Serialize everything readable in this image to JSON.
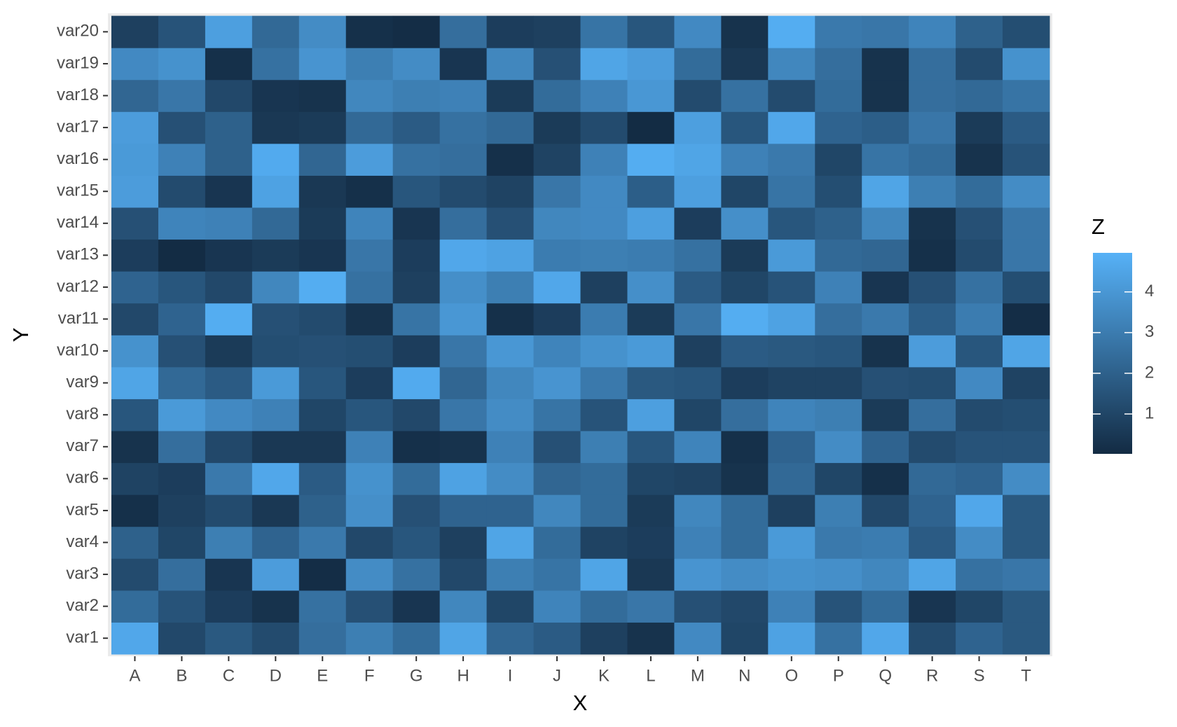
{
  "chart_data": {
    "type": "heatmap",
    "x_label": "X",
    "y_label": "Y",
    "legend_title": "Z",
    "x_categories": [
      "A",
      "B",
      "C",
      "D",
      "E",
      "F",
      "G",
      "H",
      "I",
      "J",
      "K",
      "L",
      "M",
      "N",
      "O",
      "P",
      "Q",
      "R",
      "S",
      "T"
    ],
    "y_categories": [
      "var1",
      "var2",
      "var3",
      "var4",
      "var5",
      "var6",
      "var7",
      "var8",
      "var9",
      "var10",
      "var11",
      "var12",
      "var13",
      "var14",
      "var15",
      "var16",
      "var17",
      "var18",
      "var19",
      "var20"
    ],
    "values": [
      [
        4.6,
        1.1,
        1.7,
        1.2,
        2.5,
        3.1,
        2.4,
        4.5,
        2.2,
        1.8,
        0.8,
        0.3,
        3.5,
        1.0,
        4.4,
        2.6,
        4.6,
        1.2,
        2.1,
        1.7
      ],
      [
        2.4,
        1.5,
        0.7,
        0.3,
        2.6,
        1.4,
        0.4,
        3.4,
        1.0,
        3.3,
        2.4,
        2.8,
        1.4,
        1.1,
        3.2,
        1.5,
        2.4,
        0.4,
        1.0,
        1.7
      ],
      [
        1.2,
        2.5,
        0.4,
        4.2,
        0.1,
        3.6,
        2.6,
        1.1,
        3.1,
        2.7,
        4.5,
        0.5,
        3.9,
        3.6,
        3.8,
        3.7,
        3.4,
        4.5,
        2.6,
        2.8
      ],
      [
        2.0,
        1.0,
        3.1,
        2.1,
        2.9,
        1.1,
        1.6,
        0.8,
        4.5,
        2.4,
        0.9,
        0.7,
        3.2,
        2.4,
        4.1,
        2.9,
        3.0,
        1.8,
        3.6,
        1.7
      ],
      [
        0.2,
        0.8,
        1.2,
        0.5,
        2.0,
        3.7,
        1.4,
        2.1,
        2.1,
        3.4,
        2.4,
        0.6,
        3.4,
        2.4,
        0.8,
        3.1,
        1.1,
        2.1,
        4.6,
        1.7
      ],
      [
        0.9,
        0.7,
        2.9,
        4.6,
        1.8,
        3.8,
        2.4,
        4.4,
        3.6,
        2.2,
        2.4,
        1.0,
        0.9,
        0.3,
        2.3,
        1.0,
        0.2,
        2.3,
        2.1,
        3.6
      ],
      [
        0.3,
        2.5,
        1.1,
        0.5,
        0.5,
        3.2,
        0.2,
        0.3,
        3.2,
        1.4,
        3.1,
        1.6,
        3.3,
        0.2,
        2.1,
        3.6,
        2.1,
        1.2,
        1.5,
        1.5
      ],
      [
        1.6,
        4.1,
        3.5,
        3.2,
        1.0,
        1.6,
        1.1,
        2.8,
        3.6,
        2.7,
        1.5,
        4.3,
        1.0,
        2.5,
        3.3,
        3.1,
        0.6,
        2.5,
        1.2,
        1.3
      ],
      [
        4.5,
        2.3,
        1.8,
        4.1,
        1.6,
        0.7,
        4.7,
        2.2,
        3.4,
        3.9,
        2.9,
        1.7,
        1.6,
        0.7,
        0.9,
        0.9,
        1.4,
        1.3,
        3.5,
        0.9
      ],
      [
        3.8,
        1.4,
        0.6,
        1.3,
        1.4,
        1.3,
        0.7,
        2.8,
        4.0,
        3.3,
        3.8,
        4.1,
        0.8,
        1.8,
        1.7,
        1.6,
        0.3,
        4.2,
        1.6,
        4.5
      ],
      [
        1.1,
        2.1,
        4.8,
        1.4,
        1.2,
        0.3,
        2.7,
        4.0,
        0.2,
        0.7,
        3.0,
        0.6,
        2.8,
        4.8,
        4.4,
        2.5,
        2.9,
        1.9,
        3.0,
        0.1
      ],
      [
        2.1,
        1.6,
        1.1,
        3.4,
        4.8,
        2.6,
        0.8,
        3.7,
        3.1,
        4.6,
        0.8,
        3.7,
        1.8,
        1.0,
        1.5,
        3.2,
        0.4,
        1.4,
        2.6,
        1.3
      ],
      [
        0.7,
        0.05,
        0.4,
        0.6,
        0.4,
        2.8,
        0.7,
        4.6,
        4.4,
        3.0,
        3.1,
        3.0,
        2.6,
        0.6,
        4.1,
        2.3,
        2.2,
        0.2,
        1.2,
        2.8
      ],
      [
        1.4,
        3.3,
        3.2,
        2.3,
        0.6,
        3.3,
        0.4,
        2.5,
        1.4,
        3.4,
        3.5,
        4.3,
        0.7,
        3.7,
        1.6,
        2.0,
        3.4,
        0.3,
        1.4,
        2.8
      ],
      [
        4.2,
        1.2,
        0.4,
        4.4,
        0.5,
        0.2,
        1.6,
        1.2,
        0.9,
        2.8,
        3.5,
        1.9,
        4.3,
        1.0,
        2.7,
        1.3,
        4.5,
        3.1,
        2.4,
        3.6
      ],
      [
        4.1,
        3.2,
        2.0,
        4.7,
        2.2,
        4.2,
        2.6,
        2.5,
        0.2,
        0.9,
        3.2,
        4.8,
        4.5,
        3.2,
        2.9,
        1.0,
        2.7,
        2.4,
        0.3,
        1.5
      ],
      [
        4.2,
        1.4,
        2.0,
        0.5,
        0.6,
        2.3,
        1.8,
        2.6,
        2.3,
        0.6,
        1.2,
        0.05,
        4.3,
        1.6,
        4.6,
        2.1,
        1.9,
        2.8,
        0.6,
        1.8
      ],
      [
        2.2,
        2.8,
        1.1,
        0.4,
        0.3,
        3.4,
        3.1,
        3.2,
        0.6,
        2.4,
        3.2,
        4.0,
        1.2,
        2.6,
        1.2,
        2.4,
        0.3,
        2.5,
        2.3,
        2.7
      ],
      [
        3.5,
        3.8,
        0.2,
        2.6,
        3.9,
        3.1,
        3.6,
        0.4,
        3.4,
        1.4,
        4.5,
        4.2,
        2.4,
        0.5,
        3.4,
        2.5,
        0.3,
        2.5,
        1.2,
        3.8
      ],
      [
        0.8,
        1.5,
        4.3,
        2.3,
        3.6,
        0.2,
        0.1,
        2.5,
        0.7,
        0.8,
        2.7,
        1.6,
        3.5,
        0.3,
        4.8,
        2.9,
        2.8,
        3.3,
        2.0,
        1.3
      ]
    ],
    "zlim": [
      0.02,
      4.96
    ],
    "zticks": [
      1,
      2,
      3,
      4
    ],
    "low_color": "#132B43",
    "high_color": "#56B1F7"
  }
}
